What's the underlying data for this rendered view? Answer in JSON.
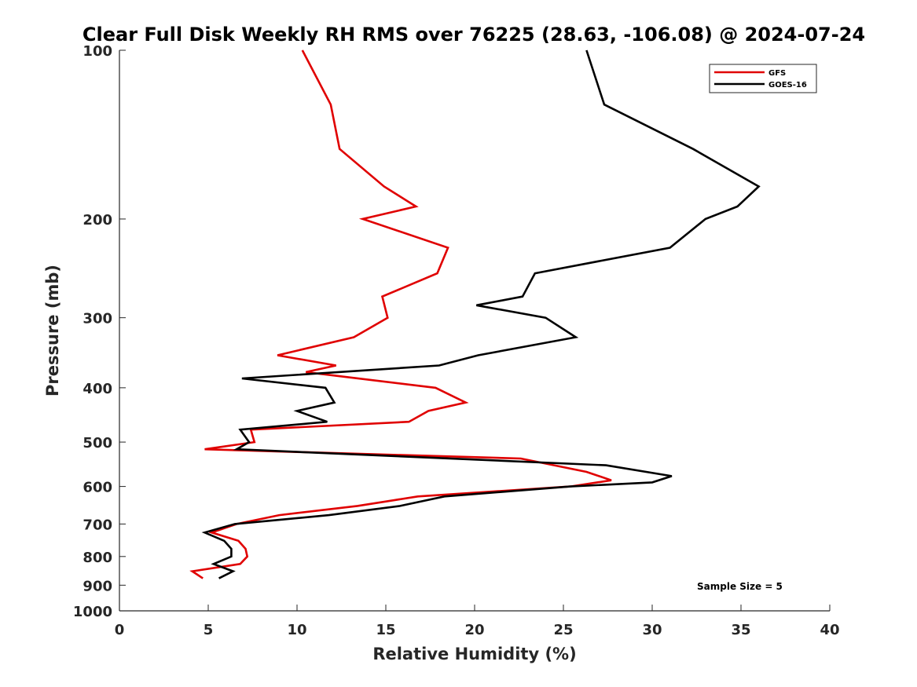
{
  "chart_data": {
    "type": "line",
    "title": "Clear Full Disk Weekly RH RMS over 76225 (28.63, -106.08) @ 2024-07-24",
    "xlabel": "Relative Humidity (%)",
    "ylabel": "Pressure (mb)",
    "xlim": [
      0,
      40
    ],
    "ylim": [
      100,
      1000
    ],
    "y_scale": "log",
    "y_reversed": true,
    "xticks": [
      0,
      5,
      10,
      15,
      20,
      25,
      30,
      35,
      40
    ],
    "yticks": [
      100,
      200,
      300,
      400,
      500,
      600,
      700,
      800,
      900,
      1000
    ],
    "grid": false,
    "legend_position": "top-right",
    "annotation": "Sample Size = 5",
    "series": [
      {
        "name": "GFS",
        "color": "#e00000",
        "points": [
          [
            10.3,
            100
          ],
          [
            11.9,
            125
          ],
          [
            12.4,
            150
          ],
          [
            14.9,
            175
          ],
          [
            16.7,
            190
          ],
          [
            13.7,
            200
          ],
          [
            18.5,
            225
          ],
          [
            17.9,
            250
          ],
          [
            14.8,
            275
          ],
          [
            15.1,
            300
          ],
          [
            13.2,
            325
          ],
          [
            8.9,
            350
          ],
          [
            12.2,
            365
          ],
          [
            10.5,
            375
          ],
          [
            17.8,
            400
          ],
          [
            19.5,
            425
          ],
          [
            17.4,
            440
          ],
          [
            16.3,
            460
          ],
          [
            7.4,
            475
          ],
          [
            7.6,
            500
          ],
          [
            4.8,
            515
          ],
          [
            22.6,
            535
          ],
          [
            26.3,
            565
          ],
          [
            27.7,
            585
          ],
          [
            25.4,
            600
          ],
          [
            16.8,
            625
          ],
          [
            13.4,
            650
          ],
          [
            9.0,
            675
          ],
          [
            6.6,
            700
          ],
          [
            5.2,
            725
          ],
          [
            6.7,
            750
          ],
          [
            7.1,
            775
          ],
          [
            7.2,
            800
          ],
          [
            6.8,
            825
          ],
          [
            4.1,
            850
          ],
          [
            4.7,
            875
          ]
        ]
      },
      {
        "name": "GOES-16",
        "color": "#000000",
        "points": [
          [
            26.3,
            100
          ],
          [
            27.3,
            125
          ],
          [
            32.3,
            150
          ],
          [
            36.0,
            175
          ],
          [
            34.8,
            190
          ],
          [
            33.0,
            200
          ],
          [
            31.0,
            225
          ],
          [
            23.4,
            250
          ],
          [
            22.7,
            275
          ],
          [
            20.1,
            285
          ],
          [
            24.0,
            300
          ],
          [
            25.7,
            325
          ],
          [
            20.2,
            350
          ],
          [
            18.0,
            365
          ],
          [
            6.9,
            385
          ],
          [
            11.6,
            400
          ],
          [
            12.1,
            425
          ],
          [
            10.0,
            440
          ],
          [
            11.7,
            460
          ],
          [
            6.8,
            475
          ],
          [
            7.3,
            500
          ],
          [
            6.6,
            515
          ],
          [
            27.4,
            550
          ],
          [
            31.1,
            575
          ],
          [
            30.0,
            590
          ],
          [
            25.4,
            600
          ],
          [
            18.3,
            625
          ],
          [
            15.8,
            650
          ],
          [
            11.8,
            675
          ],
          [
            6.5,
            700
          ],
          [
            4.8,
            725
          ],
          [
            5.9,
            750
          ],
          [
            6.3,
            775
          ],
          [
            6.3,
            800
          ],
          [
            5.3,
            825
          ],
          [
            6.4,
            850
          ],
          [
            5.6,
            875
          ]
        ]
      }
    ]
  }
}
